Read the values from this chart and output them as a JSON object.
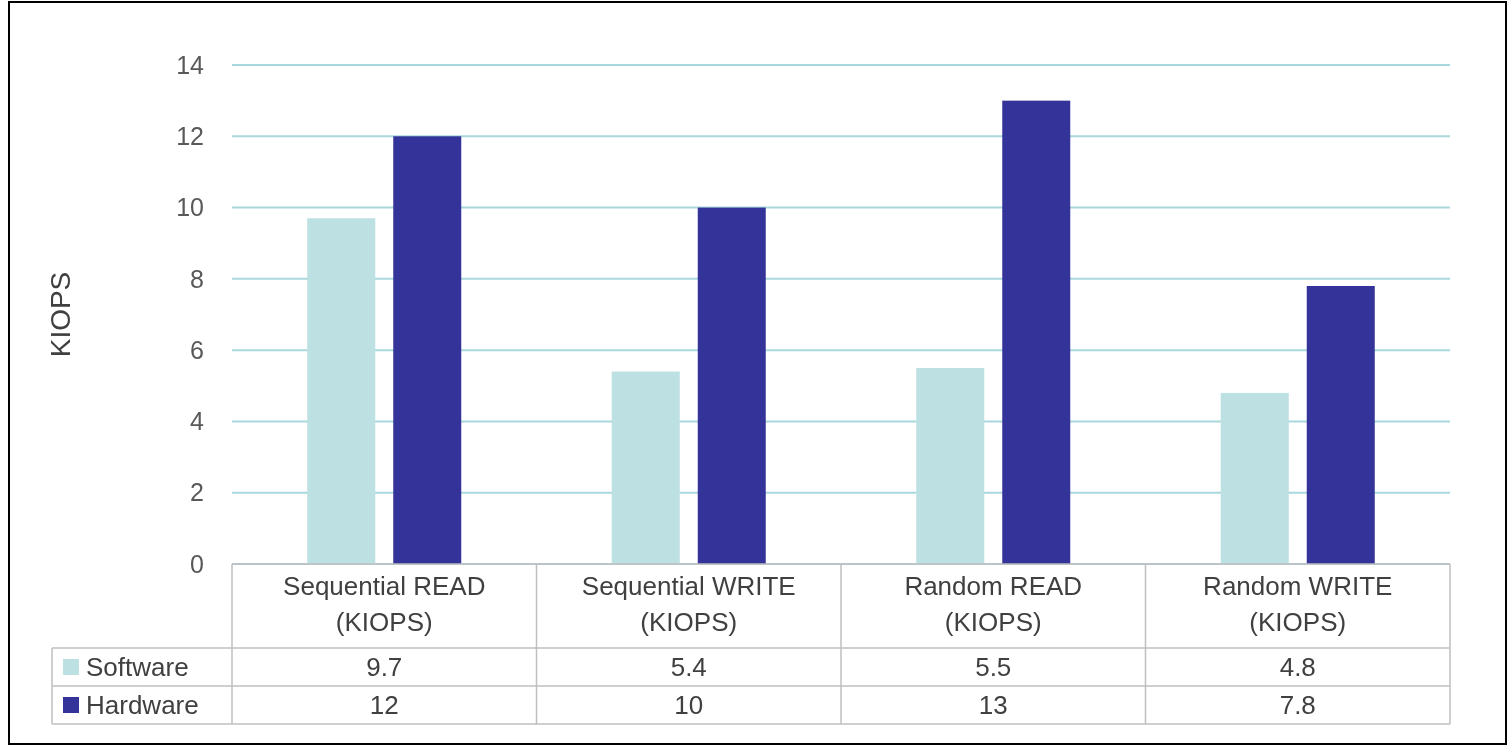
{
  "chart_data": {
    "type": "bar",
    "ylabel": "KIOPS",
    "categories": [
      "Sequential READ (KIOPS)",
      "Sequential WRITE (KIOPS)",
      "Random READ (KIOPS)",
      "Random WRITE (KIOPS)"
    ],
    "series": [
      {
        "name": "Software",
        "color": "#bde0e2",
        "values": [
          9.7,
          5.4,
          5.5,
          4.8
        ]
      },
      {
        "name": "Hardware",
        "color": "#333399",
        "values": [
          12,
          10,
          13,
          7.8
        ]
      }
    ],
    "ylim": [
      0,
      14
    ],
    "yticks": [
      0,
      2,
      4,
      6,
      8,
      10,
      12,
      14
    ],
    "grid": "y",
    "legend": "bottom",
    "data_labels": true
  }
}
